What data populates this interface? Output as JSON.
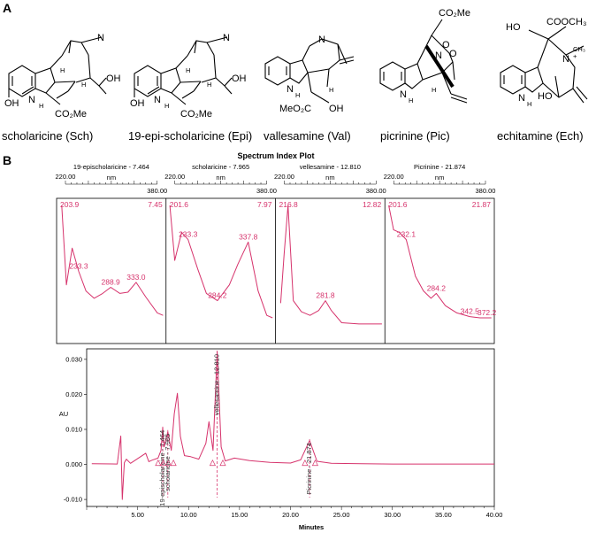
{
  "panels": {
    "a": "A",
    "b": "B"
  },
  "compounds": [
    {
      "id": "sch",
      "name": "scholaricine (Sch)",
      "atoms": [
        "N",
        "N",
        "H",
        "H",
        "H",
        "OH",
        "OH",
        "CO₂Me"
      ]
    },
    {
      "id": "epi",
      "name": "19-epi-scholaricine (Epi)",
      "atoms": [
        "N",
        "N",
        "H",
        "H",
        "H",
        "OH",
        "OH",
        "CO₂Me"
      ]
    },
    {
      "id": "val",
      "name": "vallesamine (Val)",
      "atoms": [
        "N",
        "N",
        "H",
        "H",
        "MeO₂C",
        "OH"
      ]
    },
    {
      "id": "pic",
      "name": "picrinine (Pic)",
      "atoms": [
        "N",
        "N",
        "H",
        "O",
        "O",
        "H",
        "CO₂Me"
      ]
    },
    {
      "id": "ech",
      "name": "echitamine (Ech)",
      "atoms": [
        "HO",
        "COOCH₃",
        "N",
        "N",
        "H",
        "CH₃",
        "HO",
        "+"
      ]
    }
  ],
  "spectrum": {
    "title": "Spectrum Index Plot",
    "nm_label": "nm",
    "panels": [
      {
        "header": "19-epischolaricine - 7.464",
        "range": [
          "220.00",
          "380.00"
        ],
        "right": "7.45",
        "peaks": [
          "203.9",
          "233.3",
          "288.9",
          "333.0"
        ]
      },
      {
        "header": "scholaricine - 7.965",
        "range": [
          "220.00",
          "380.00"
        ],
        "right": "7.97",
        "peaks": [
          "201.6",
          "233.3",
          "284.2",
          "337.8"
        ]
      },
      {
        "header": "vellesamine - 12.810",
        "range": [
          "220.00",
          "380.00"
        ],
        "right": "12.82",
        "peaks": [
          "216.8",
          "281.8"
        ]
      },
      {
        "header": "Picrinine - 21.874",
        "range": [
          "220.00",
          "380.00"
        ],
        "right": "21.87",
        "peaks": [
          "201.6",
          "232.1",
          "284.2",
          "342.5",
          "372.2"
        ]
      }
    ]
  },
  "chromatogram": {
    "ylabel": "AU",
    "xlabel": "Minutes",
    "yticks": [
      "0.030",
      "0.020",
      "0.010",
      "0.000",
      "-0.010"
    ],
    "xticks": [
      "5.00",
      "10.00",
      "15.00",
      "20.00",
      "25.00",
      "30.00",
      "35.00",
      "40.00"
    ],
    "peak_labels": [
      "19-epischolaricine - 7.464",
      "scholaricine - 7.965",
      "vellesamine - 12.810",
      "Picrinine - 21.874"
    ]
  },
  "chart_data": {
    "type": "line",
    "title": "",
    "xlabel": "Minutes",
    "ylabel": "AU",
    "xlim": [
      0,
      40
    ],
    "ylim": [
      -0.012,
      0.033
    ],
    "x": [
      0.5,
      3.0,
      3.35,
      3.5,
      3.7,
      3.9,
      4.3,
      5.8,
      6.1,
      6.4,
      7.0,
      7.3,
      7.464,
      7.6,
      7.965,
      8.3,
      8.6,
      8.9,
      9.2,
      9.6,
      10.2,
      11.0,
      11.7,
      12.0,
      12.4,
      12.81,
      13.2,
      13.6,
      14.5,
      16.0,
      18.0,
      20.0,
      21.0,
      21.874,
      22.6,
      24.0,
      27.0,
      30.0,
      35.0,
      40.0
    ],
    "series": [
      {
        "values": [
          0.0002,
          0.0001,
          0.0081,
          -0.01,
          0.0005,
          0.0015,
          0.0003,
          0.0032,
          0.0008,
          0.0012,
          0.0018,
          0.004,
          0.0105,
          0.005,
          0.0093,
          0.004,
          0.0145,
          0.0203,
          0.008,
          0.0025,
          0.0022,
          0.0015,
          0.006,
          0.0122,
          0.004,
          0.0322,
          0.005,
          0.001,
          0.0018,
          0.0011,
          0.0006,
          0.0004,
          0.0013,
          0.0068,
          0.0009,
          0.0003,
          0.0002,
          0.0001,
          0.0001,
          0.0001
        ]
      }
    ],
    "retention_times": [
      7.464,
      7.965,
      12.81,
      21.874
    ],
    "uv_spectra": {
      "type": "line",
      "xlabel": "nm",
      "xlim": [
        220,
        380
      ],
      "spectra": [
        {
          "name": "19-epischolaricine - 7.464",
          "nm": [
            203.9,
            212,
            222,
            233.3,
            246,
            260,
            275,
            288.9,
            305,
            319,
            333.0,
            350,
            370,
            380
          ],
          "abs": [
            1.0,
            0.35,
            0.65,
            0.46,
            0.3,
            0.24,
            0.28,
            0.33,
            0.28,
            0.29,
            0.37,
            0.25,
            0.12,
            0.1
          ]
        },
        {
          "name": "scholaricine - 7.965",
          "nm": [
            201.6,
            210,
            222,
            233.3,
            250,
            265,
            284.2,
            305,
            320,
            337.8,
            355,
            370,
            380
          ],
          "abs": [
            1.0,
            0.55,
            0.78,
            0.72,
            0.48,
            0.28,
            0.22,
            0.35,
            0.52,
            0.7,
            0.3,
            0.1,
            0.08
          ]
        },
        {
          "name": "vellesamine - 12.810",
          "nm": [
            204,
            210,
            216.8,
            226,
            240,
            255,
            270,
            281.8,
            292,
            310,
            340,
            380
          ],
          "abs": [
            0.2,
            0.6,
            1.0,
            0.22,
            0.13,
            0.1,
            0.14,
            0.22,
            0.14,
            0.04,
            0.03,
            0.03
          ]
        },
        {
          "name": "Picrinine - 21.874",
          "nm": [
            201.6,
            210,
            220,
            232.1,
            248,
            262,
            275,
            284.2,
            300,
            320,
            342.5,
            360,
            372.2,
            380
          ],
          "abs": [
            1.0,
            0.8,
            0.78,
            0.72,
            0.42,
            0.3,
            0.24,
            0.28,
            0.18,
            0.12,
            0.09,
            0.08,
            0.08,
            0.08
          ]
        }
      ]
    }
  }
}
